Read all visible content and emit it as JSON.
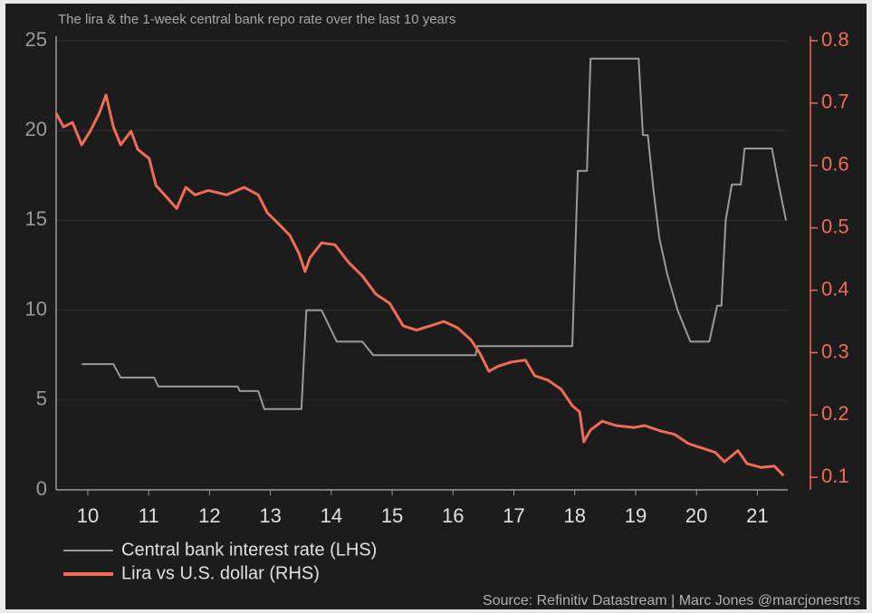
{
  "chart_data": {
    "type": "line",
    "title": "The lira & the 1-week central bank repo rate over the last 10 years",
    "source": "Source: Refinitiv Datastream | Marc Jones @marcjonesrtrs",
    "xlim": [
      9.48,
      21.5
    ],
    "xticks": [
      10,
      11,
      12,
      13,
      14,
      15,
      16,
      17,
      18,
      19,
      20,
      21
    ],
    "ylim": [
      0,
      25
    ],
    "yticks": [
      0,
      5,
      10,
      15,
      20,
      25
    ],
    "y2lim": [
      0.08,
      0.8
    ],
    "y2ticks": [
      0.1,
      0.2,
      0.3,
      0.4,
      0.5,
      0.6,
      0.7,
      0.8
    ],
    "grid": true,
    "series": [
      {
        "name": "Central bank interest rate (LHS)",
        "color": "#9a9a9a",
        "axis": "y",
        "x": [
          9.9,
          10.42,
          10.54,
          11.09,
          11.16,
          12.46,
          12.5,
          12.8,
          12.9,
          13.51,
          13.59,
          13.84,
          14.09,
          14.51,
          14.69,
          16.37,
          16.4,
          17.96,
          18.05,
          18.2,
          18.26,
          19.05,
          19.12,
          19.2,
          19.3,
          19.39,
          19.52,
          19.69,
          19.9,
          20.21,
          20.34,
          20.41,
          20.48,
          20.58,
          20.73,
          20.79,
          21.24,
          21.35,
          21.47
        ],
        "values": [
          7,
          7,
          6.25,
          6.25,
          5.75,
          5.75,
          5.5,
          5.5,
          4.5,
          4.5,
          10,
          10,
          8.25,
          8.25,
          7.5,
          7.5,
          8,
          8,
          17.75,
          17.75,
          24,
          24,
          19.75,
          19.75,
          16.5,
          14,
          12,
          10,
          8.25,
          8.25,
          10.25,
          10.25,
          15,
          17,
          17,
          19,
          19,
          17,
          15
        ]
      },
      {
        "name": "Lira vs U.S. dollar (RHS)",
        "color": "#f26b55",
        "axis": "y2",
        "x": [
          9.48,
          9.6,
          9.75,
          9.9,
          10.04,
          10.19,
          10.3,
          10.42,
          10.54,
          10.71,
          10.82,
          11.01,
          11.12,
          11.26,
          11.46,
          11.61,
          11.76,
          11.98,
          12.28,
          12.57,
          12.8,
          12.95,
          13.1,
          13.32,
          13.47,
          13.57,
          13.65,
          13.84,
          14.06,
          14.29,
          14.51,
          14.73,
          14.96,
          15.18,
          15.4,
          15.63,
          15.85,
          16.07,
          16.29,
          16.44,
          16.59,
          16.74,
          16.96,
          17.19,
          17.34,
          17.56,
          17.78,
          17.96,
          18.08,
          18.15,
          18.26,
          18.45,
          18.68,
          18.97,
          19.15,
          19.42,
          19.64,
          19.87,
          20.09,
          20.31,
          20.46,
          20.68,
          20.83,
          21.06,
          21.28,
          21.43
        ],
        "values": [
          0.684,
          0.662,
          0.669,
          0.633,
          0.655,
          0.684,
          0.713,
          0.662,
          0.633,
          0.655,
          0.626,
          0.611,
          0.568,
          0.553,
          0.531,
          0.565,
          0.553,
          0.56,
          0.553,
          0.565,
          0.553,
          0.524,
          0.51,
          0.488,
          0.459,
          0.43,
          0.452,
          0.476,
          0.473,
          0.444,
          0.423,
          0.394,
          0.379,
          0.343,
          0.336,
          0.343,
          0.35,
          0.34,
          0.321,
          0.299,
          0.27,
          0.278,
          0.285,
          0.288,
          0.263,
          0.256,
          0.241,
          0.215,
          0.205,
          0.157,
          0.176,
          0.19,
          0.183,
          0.18,
          0.183,
          0.174,
          0.169,
          0.154,
          0.147,
          0.14,
          0.125,
          0.143,
          0.122,
          0.116,
          0.118,
          0.103
        ]
      }
    ]
  }
}
